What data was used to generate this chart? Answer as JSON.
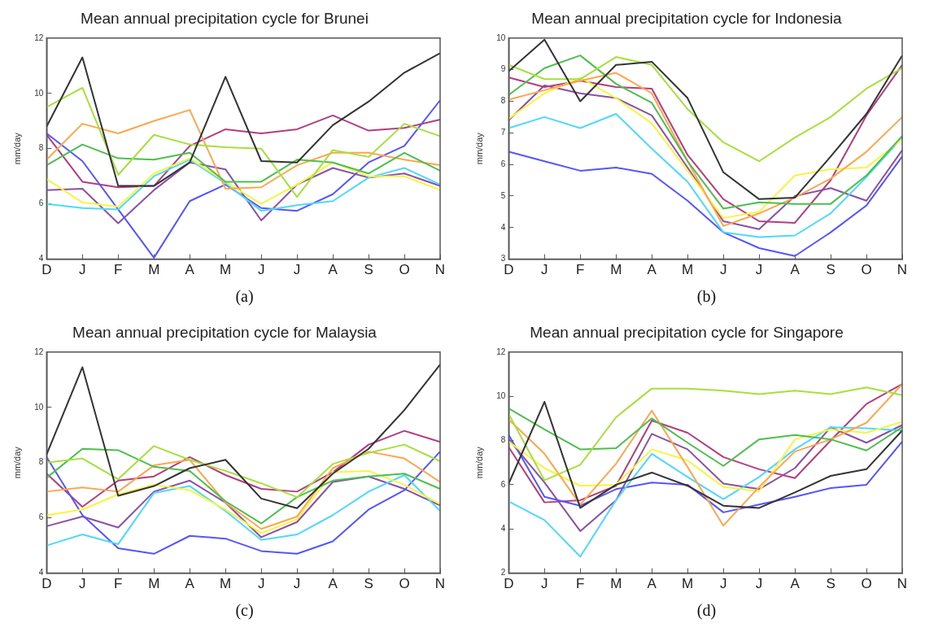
{
  "chart_data": [
    {
      "type": "line",
      "title": "Mean annual precipitation cycle for Brunei",
      "ylabel": "mm/day",
      "categories": [
        "D",
        "J",
        "F",
        "M",
        "A",
        "M",
        "J",
        "J",
        "A",
        "S",
        "O",
        "N"
      ],
      "ylim": [
        4,
        12
      ],
      "yticks": [
        4,
        6,
        8,
        10,
        12
      ],
      "annotations": [
        "(a)"
      ],
      "series": [
        {
          "color": "#333333",
          "values": [
            8.8,
            11.3,
            6.65,
            6.65,
            7.5,
            10.6,
            7.55,
            7.5,
            8.85,
            9.7,
            10.75,
            11.45
          ]
        },
        {
          "color": "#a6e03c",
          "values": [
            9.5,
            10.2,
            7.05,
            8.5,
            8.15,
            8.05,
            8.0,
            6.25,
            7.95,
            7.7,
            8.9,
            8.45
          ]
        },
        {
          "color": "#4cbf4c",
          "values": [
            7.4,
            8.15,
            7.65,
            7.6,
            7.85,
            6.8,
            6.8,
            7.6,
            7.5,
            7.1,
            7.85,
            7.2
          ]
        },
        {
          "color": "#ffa64d",
          "values": [
            7.6,
            8.9,
            8.55,
            9.0,
            9.4,
            6.55,
            6.6,
            7.4,
            7.85,
            7.85,
            7.6,
            7.4
          ]
        },
        {
          "color": "#f5f542",
          "values": [
            6.9,
            6.05,
            5.9,
            7.1,
            7.65,
            6.8,
            6.0,
            6.7,
            7.5,
            7.0,
            7.0,
            6.5
          ]
        },
        {
          "color": "#4dd9ff",
          "values": [
            6.0,
            5.85,
            5.8,
            7.0,
            7.6,
            6.75,
            5.75,
            5.95,
            6.1,
            6.95,
            7.3,
            6.7
          ]
        },
        {
          "color": "#5555ff",
          "values": [
            8.55,
            7.55,
            5.8,
            4.05,
            6.1,
            6.7,
            5.85,
            5.75,
            6.35,
            7.5,
            8.1,
            9.75
          ]
        },
        {
          "color": "#b33d80",
          "values": [
            8.5,
            6.8,
            6.6,
            6.65,
            8.1,
            8.7,
            8.55,
            8.7,
            9.2,
            8.65,
            8.75,
            9.05
          ]
        },
        {
          "color": "#8c4fa6",
          "values": [
            6.5,
            6.55,
            5.3,
            6.5,
            7.5,
            7.25,
            5.4,
            6.7,
            7.3,
            6.95,
            7.1,
            6.65
          ]
        }
      ]
    },
    {
      "type": "line",
      "title": "Mean annual precipitation cycle for Indonesia",
      "ylabel": "mm/day",
      "categories": [
        "D",
        "J",
        "F",
        "M",
        "A",
        "M",
        "J",
        "J",
        "A",
        "S",
        "O",
        "N"
      ],
      "ylim": [
        3,
        10
      ],
      "yticks": [
        3,
        4,
        5,
        6,
        7,
        8,
        9,
        10
      ],
      "annotations": [
        "(b)"
      ],
      "series": [
        {
          "color": "#333333",
          "values": [
            8.95,
            9.95,
            8.0,
            9.15,
            9.25,
            8.1,
            5.75,
            4.9,
            4.95,
            6.25,
            7.6,
            9.45
          ]
        },
        {
          "color": "#a6e03c",
          "values": [
            9.15,
            8.7,
            8.7,
            9.4,
            9.15,
            7.75,
            6.7,
            6.1,
            6.85,
            7.5,
            8.4,
            9.05
          ]
        },
        {
          "color": "#4cbf4c",
          "values": [
            8.2,
            9.05,
            9.45,
            8.55,
            7.95,
            6.1,
            4.6,
            4.8,
            4.75,
            4.75,
            5.65,
            6.9
          ]
        },
        {
          "color": "#ffa64d",
          "values": [
            8.05,
            8.35,
            8.65,
            8.9,
            8.25,
            6.1,
            4.05,
            4.45,
            4.95,
            5.55,
            6.4,
            7.5
          ]
        },
        {
          "color": "#f5f542",
          "values": [
            7.45,
            8.25,
            8.75,
            8.1,
            7.3,
            5.8,
            4.3,
            4.5,
            5.65,
            5.85,
            5.9,
            6.8
          ]
        },
        {
          "color": "#4dd9ff",
          "values": [
            7.15,
            7.5,
            7.15,
            7.6,
            6.5,
            5.45,
            3.85,
            3.7,
            3.75,
            4.45,
            5.6,
            6.85
          ]
        },
        {
          "color": "#5555ff",
          "values": [
            6.4,
            6.1,
            5.8,
            5.9,
            5.7,
            4.85,
            3.85,
            3.35,
            3.1,
            3.85,
            4.7,
            6.25
          ]
        },
        {
          "color": "#b33d80",
          "values": [
            8.75,
            8.45,
            8.65,
            8.45,
            8.4,
            6.3,
            4.9,
            4.2,
            4.15,
            5.5,
            7.55,
            9.15
          ]
        },
        {
          "color": "#8c4fa6",
          "values": [
            7.4,
            8.5,
            8.25,
            8.1,
            7.55,
            5.9,
            4.2,
            3.95,
            5.0,
            5.25,
            4.85,
            6.45
          ]
        }
      ]
    },
    {
      "type": "line",
      "title": "Mean annual precipitation cycle for Malaysia",
      "ylabel": "mm/day",
      "categories": [
        "D",
        "J",
        "F",
        "M",
        "A",
        "M",
        "J",
        "J",
        "A",
        "S",
        "O",
        "N"
      ],
      "ylim": [
        4,
        12
      ],
      "yticks": [
        4,
        6,
        8,
        10,
        12
      ],
      "annotations": [
        "(c)"
      ],
      "series": [
        {
          "color": "#333333",
          "values": [
            8.3,
            11.45,
            6.8,
            7.15,
            7.8,
            8.1,
            6.7,
            6.35,
            7.6,
            8.5,
            9.9,
            11.55
          ]
        },
        {
          "color": "#a6e03c",
          "values": [
            8.0,
            8.15,
            7.4,
            8.6,
            8.1,
            7.7,
            7.25,
            6.75,
            7.95,
            8.35,
            8.65,
            8.05
          ]
        },
        {
          "color": "#4cbf4c",
          "values": [
            7.45,
            8.5,
            8.45,
            7.85,
            7.7,
            6.6,
            5.8,
            6.75,
            7.35,
            7.5,
            7.6,
            7.05
          ]
        },
        {
          "color": "#ffa64d",
          "values": [
            6.95,
            7.1,
            6.95,
            7.9,
            8.1,
            6.55,
            5.6,
            6.05,
            7.8,
            8.4,
            8.15,
            7.3
          ]
        },
        {
          "color": "#f5f542",
          "values": [
            6.1,
            6.3,
            6.85,
            7.2,
            7.0,
            6.3,
            5.45,
            5.95,
            7.65,
            7.7,
            7.2,
            6.5
          ]
        },
        {
          "color": "#4dd9ff",
          "values": [
            5.0,
            5.4,
            5.05,
            6.9,
            7.15,
            6.25,
            5.2,
            5.4,
            6.1,
            6.95,
            7.55,
            6.25
          ]
        },
        {
          "color": "#5555ff",
          "values": [
            8.2,
            6.1,
            4.9,
            4.7,
            5.35,
            5.25,
            4.8,
            4.7,
            5.15,
            6.3,
            7.0,
            8.4
          ]
        },
        {
          "color": "#b33d80",
          "values": [
            7.6,
            6.4,
            7.35,
            7.5,
            8.2,
            7.55,
            7.05,
            6.95,
            7.65,
            8.65,
            9.15,
            8.75
          ]
        },
        {
          "color": "#8c4fa6",
          "values": [
            5.7,
            6.05,
            5.65,
            6.95,
            7.35,
            6.55,
            5.3,
            5.85,
            7.3,
            7.5,
            7.05,
            6.45
          ]
        }
      ]
    },
    {
      "type": "line",
      "title": "Mean annual precipitation cycle for Singapore",
      "ylabel": "mm/day",
      "categories": [
        "D",
        "J",
        "F",
        "M",
        "A",
        "M",
        "J",
        "J",
        "A",
        "S",
        "O",
        "N"
      ],
      "ylim": [
        2,
        12
      ],
      "yticks": [
        2,
        4,
        6,
        8,
        10,
        12
      ],
      "annotations": [
        "(d)"
      ],
      "series": [
        {
          "color": "#333333",
          "values": [
            6.05,
            9.75,
            4.95,
            6.0,
            6.55,
            5.95,
            5.05,
            4.95,
            5.65,
            6.4,
            6.7,
            8.45
          ]
        },
        {
          "color": "#a6e03c",
          "values": [
            9.2,
            6.2,
            6.9,
            9.05,
            10.35,
            10.35,
            10.25,
            10.1,
            10.25,
            10.1,
            10.4,
            10.05
          ]
        },
        {
          "color": "#4cbf4c",
          "values": [
            9.45,
            8.5,
            7.6,
            7.65,
            9.0,
            7.9,
            6.85,
            8.05,
            8.25,
            8.05,
            7.55,
            8.6
          ]
        },
        {
          "color": "#ffa64d",
          "values": [
            8.95,
            7.4,
            5.1,
            6.95,
            9.35,
            6.8,
            4.15,
            5.9,
            7.5,
            8.05,
            8.8,
            10.55
          ]
        },
        {
          "color": "#f5f542",
          "values": [
            7.95,
            6.75,
            5.95,
            6.0,
            7.6,
            7.1,
            5.9,
            5.7,
            8.05,
            8.5,
            8.35,
            8.85
          ]
        },
        {
          "color": "#4dd9ff",
          "values": [
            5.25,
            4.4,
            2.75,
            5.3,
            7.4,
            6.35,
            5.35,
            6.35,
            7.6,
            8.6,
            8.55,
            8.45
          ]
        },
        {
          "color": "#5555ff",
          "values": [
            8.25,
            5.45,
            5.05,
            5.8,
            6.1,
            6.0,
            4.75,
            5.1,
            5.45,
            5.85,
            6.0,
            7.95
          ]
        },
        {
          "color": "#b33d80",
          "values": [
            7.7,
            5.2,
            5.3,
            5.95,
            8.9,
            8.35,
            7.25,
            6.7,
            6.3,
            8.0,
            9.65,
            10.55
          ]
        },
        {
          "color": "#8c4fa6",
          "values": [
            8.05,
            6.1,
            3.9,
            5.3,
            8.3,
            7.6,
            6.05,
            5.8,
            6.75,
            8.6,
            7.9,
            8.7
          ]
        }
      ]
    }
  ]
}
